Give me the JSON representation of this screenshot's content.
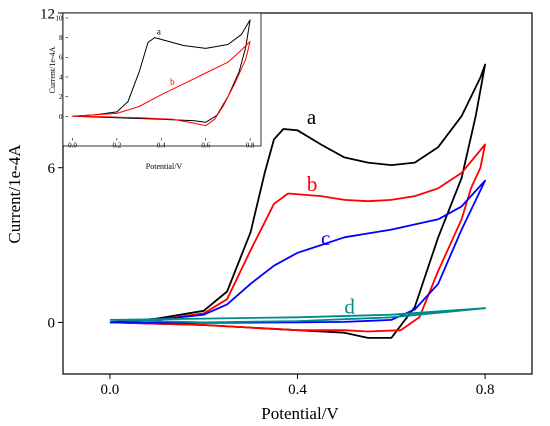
{
  "chart_data": [
    {
      "type": "line",
      "xlabel": "Potential/V",
      "ylabel": "Current/1e-4A",
      "xlim": [
        -0.1,
        0.9
      ],
      "ylim": [
        -2,
        12
      ],
      "x_ticks": [
        {
          "v": 0.0,
          "label": "0.0"
        },
        {
          "v": 0.4,
          "label": "0.4"
        },
        {
          "v": 0.8,
          "label": "0.8"
        }
      ],
      "y_ticks": [
        {
          "v": 0,
          "label": "0"
        },
        {
          "v": 6,
          "label": "6"
        },
        {
          "v": 12,
          "label": "12"
        }
      ],
      "series": [
        {
          "name": "a",
          "color": "#000000",
          "label_at": [
            0.42,
            7.7
          ],
          "points": [
            [
              0,
              0
            ],
            [
              0.1,
              0.15
            ],
            [
              0.2,
              0.45
            ],
            [
              0.25,
              1.2
            ],
            [
              0.3,
              3.5
            ],
            [
              0.33,
              5.8
            ],
            [
              0.35,
              7.1
            ],
            [
              0.37,
              7.5
            ],
            [
              0.4,
              7.45
            ],
            [
              0.45,
              6.9
            ],
            [
              0.5,
              6.4
            ],
            [
              0.55,
              6.2
            ],
            [
              0.6,
              6.1
            ],
            [
              0.65,
              6.2
            ],
            [
              0.7,
              6.8
            ],
            [
              0.75,
              8.0
            ],
            [
              0.79,
              9.5
            ],
            [
              0.8,
              10.0
            ],
            [
              0.78,
              8.0
            ],
            [
              0.75,
              5.6
            ],
            [
              0.7,
              3.3
            ],
            [
              0.65,
              0.6
            ],
            [
              0.6,
              -0.6
            ],
            [
              0.55,
              -0.6
            ],
            [
              0.5,
              -0.4
            ],
            [
              0.4,
              -0.3
            ],
            [
              0.3,
              -0.2
            ],
            [
              0.2,
              -0.1
            ],
            [
              0.1,
              -0.05
            ],
            [
              0,
              0
            ]
          ]
        },
        {
          "name": "b",
          "color": "#ff0000",
          "label_at": [
            0.42,
            5.1
          ],
          "points": [
            [
              0,
              0
            ],
            [
              0.1,
              0.1
            ],
            [
              0.2,
              0.35
            ],
            [
              0.25,
              0.9
            ],
            [
              0.3,
              2.8
            ],
            [
              0.35,
              4.6
            ],
            [
              0.38,
              5.0
            ],
            [
              0.45,
              4.9
            ],
            [
              0.5,
              4.75
            ],
            [
              0.55,
              4.7
            ],
            [
              0.6,
              4.75
            ],
            [
              0.65,
              4.9
            ],
            [
              0.7,
              5.2
            ],
            [
              0.75,
              5.8
            ],
            [
              0.8,
              6.9
            ],
            [
              0.79,
              6.0
            ],
            [
              0.77,
              5.2
            ],
            [
              0.75,
              4.0
            ],
            [
              0.7,
              2.0
            ],
            [
              0.66,
              0.2
            ],
            [
              0.62,
              -0.3
            ],
            [
              0.55,
              -0.35
            ],
            [
              0.5,
              -0.3
            ],
            [
              0.4,
              -0.3
            ],
            [
              0.3,
              -0.2
            ],
            [
              0.2,
              -0.1
            ],
            [
              0,
              0
            ]
          ]
        },
        {
          "name": "c",
          "color": "#0000ff",
          "label_at": [
            0.45,
            3.0
          ],
          "points": [
            [
              0,
              0
            ],
            [
              0.1,
              0.1
            ],
            [
              0.2,
              0.3
            ],
            [
              0.25,
              0.7
            ],
            [
              0.3,
              1.5
            ],
            [
              0.35,
              2.2
            ],
            [
              0.4,
              2.7
            ],
            [
              0.45,
              3.0
            ],
            [
              0.5,
              3.3
            ],
            [
              0.6,
              3.6
            ],
            [
              0.7,
              4.0
            ],
            [
              0.75,
              4.5
            ],
            [
              0.8,
              5.5
            ],
            [
              0.75,
              3.6
            ],
            [
              0.7,
              1.5
            ],
            [
              0.65,
              0.5
            ],
            [
              0.6,
              0.1
            ],
            [
              0.5,
              0.02
            ],
            [
              0.4,
              0
            ],
            [
              0.2,
              -0.02
            ],
            [
              0,
              0
            ]
          ]
        },
        {
          "name": "d",
          "color": "#008b8b",
          "label_at": [
            0.5,
            0.35
          ],
          "points": [
            [
              0,
              0.1
            ],
            [
              0.2,
              0.15
            ],
            [
              0.4,
              0.2
            ],
            [
              0.6,
              0.3
            ],
            [
              0.8,
              0.55
            ],
            [
              0.6,
              0.2
            ],
            [
              0.4,
              0.05
            ],
            [
              0.2,
              0
            ],
            [
              0,
              0.1
            ]
          ]
        }
      ],
      "inset": {
        "xlabel": "Potential/V",
        "ylabel": "Current/1e-4A",
        "xlim": [
          -0.02,
          0.84
        ],
        "ylim": [
          -2.2,
          10.5
        ],
        "x_ticks": [
          {
            "v": 0.0,
            "label": "0.0"
          },
          {
            "v": 0.2,
            "label": "0.2"
          },
          {
            "v": 0.4,
            "label": "0.4"
          },
          {
            "v": 0.6,
            "label": "0.6"
          },
          {
            "v": 0.8,
            "label": "0.8"
          }
        ],
        "y_ticks": [
          {
            "v": 0,
            "label": "0"
          },
          {
            "v": 2,
            "label": "2"
          },
          {
            "v": 4,
            "label": "4"
          },
          {
            "v": 6,
            "label": "6"
          },
          {
            "v": 8,
            "label": "8"
          },
          {
            "v": 10,
            "label": "10"
          }
        ],
        "series": [
          {
            "name": "a",
            "color": "#000000",
            "label_at": [
              0.38,
              8.3
            ],
            "points": [
              [
                0,
                0
              ],
              [
                0.1,
                0.15
              ],
              [
                0.2,
                0.45
              ],
              [
                0.25,
                1.5
              ],
              [
                0.3,
                4.5
              ],
              [
                0.34,
                7.5
              ],
              [
                0.37,
                8.0
              ],
              [
                0.42,
                7.7
              ],
              [
                0.5,
                7.2
              ],
              [
                0.6,
                6.9
              ],
              [
                0.7,
                7.3
              ],
              [
                0.76,
                8.3
              ],
              [
                0.8,
                9.8
              ],
              [
                0.78,
                7.0
              ],
              [
                0.75,
                4.5
              ],
              [
                0.7,
                2.0
              ],
              [
                0.65,
                0.1
              ],
              [
                0.6,
                -0.6
              ],
              [
                0.55,
                -0.45
              ],
              [
                0.4,
                -0.3
              ],
              [
                0.2,
                -0.15
              ],
              [
                0,
                0
              ]
            ]
          },
          {
            "name": "b",
            "color": "#ff0000",
            "label_at": [
              0.44,
              3.2
            ],
            "points": [
              [
                0,
                0
              ],
              [
                0.2,
                0.3
              ],
              [
                0.3,
                1.0
              ],
              [
                0.4,
                2.2
              ],
              [
                0.5,
                3.3
              ],
              [
                0.6,
                4.4
              ],
              [
                0.7,
                5.5
              ],
              [
                0.75,
                6.5
              ],
              [
                0.8,
                7.6
              ],
              [
                0.78,
                5.8
              ],
              [
                0.73,
                3.3
              ],
              [
                0.68,
                1.1
              ],
              [
                0.64,
                -0.3
              ],
              [
                0.6,
                -0.95
              ],
              [
                0.55,
                -0.7
              ],
              [
                0.45,
                -0.3
              ],
              [
                0.3,
                -0.15
              ],
              [
                0.15,
                -0.05
              ],
              [
                0,
                0
              ]
            ]
          }
        ]
      }
    }
  ]
}
